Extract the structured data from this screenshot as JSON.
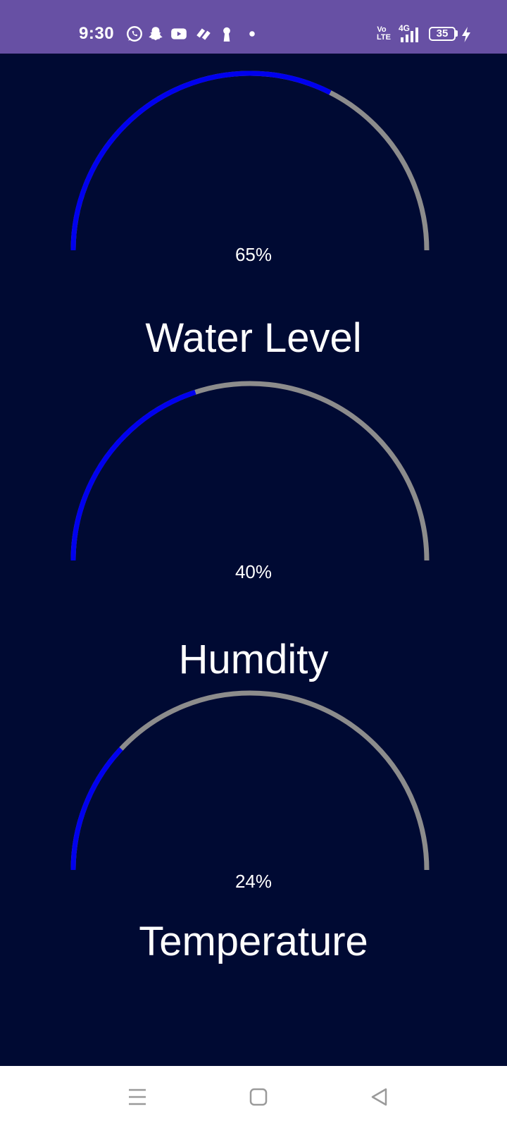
{
  "status_bar": {
    "time": "9:30",
    "network_volte": "Vo LTE",
    "network_type": "4G",
    "battery_level": "35",
    "icons": [
      "whatsapp-icon",
      "snapchat-icon",
      "youtube-icon",
      "game-app-icon",
      "keyhole-icon",
      "dot-icon",
      "signal-icon",
      "charging-icon"
    ]
  },
  "gauges": [
    {
      "value": 65,
      "display": "65%",
      "label": "Water Level"
    },
    {
      "value": 40,
      "display": "40%",
      "label": "Humdity"
    },
    {
      "value": 24,
      "display": "24%",
      "label": "Temperature"
    }
  ],
  "colors": {
    "background": "#000a33",
    "status_bar": "#6750a4",
    "gauge_fill": "#0000ee",
    "gauge_track": "#8c8c8c",
    "text": "#ffffff"
  },
  "nav_bar": {
    "icons": [
      "menu-icon",
      "home-icon",
      "back-icon"
    ]
  }
}
